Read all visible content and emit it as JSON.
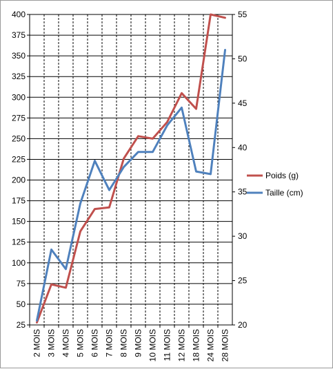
{
  "chart_data": {
    "type": "line",
    "categories": [
      "2 MOIS",
      "3 MOIS",
      "4 MOIS",
      "5 MOIS",
      "6 MOIS",
      "7 MOIS",
      "8 MOIS",
      "9 MOIS",
      "10 MOIS",
      "11 MOIS",
      "12 MOIS",
      "18 MOIS",
      "24 MOIS",
      "28 MOIS"
    ],
    "series": [
      {
        "name": "Poids (g)",
        "axis": "left",
        "color": "#c0504d",
        "values": [
          28,
          74,
          70,
          138,
          165,
          167,
          226,
          253,
          250,
          270,
          305,
          286,
          400,
          396
        ]
      },
      {
        "name": "Taille (cm)",
        "axis": "right",
        "color": "#4f81bd",
        "values": [
          20.5,
          28.5,
          26.3,
          33.7,
          38.5,
          35.2,
          37.8,
          39.5,
          39.5,
          42.5,
          44.5,
          37.3,
          37.0,
          51.0
        ]
      }
    ],
    "y_left": {
      "min": 25,
      "max": 400,
      "ticks": [
        "25",
        "50",
        "75",
        "100",
        "125",
        "150",
        "175",
        "200",
        "225",
        "250",
        "275",
        "300",
        "325",
        "350",
        "375",
        "400"
      ]
    },
    "y_right": {
      "min": 20,
      "max": 55,
      "ticks": [
        "20",
        "25",
        "30",
        "35",
        "40",
        "45",
        "50",
        "55"
      ]
    },
    "grid": "on",
    "legend": "right"
  }
}
